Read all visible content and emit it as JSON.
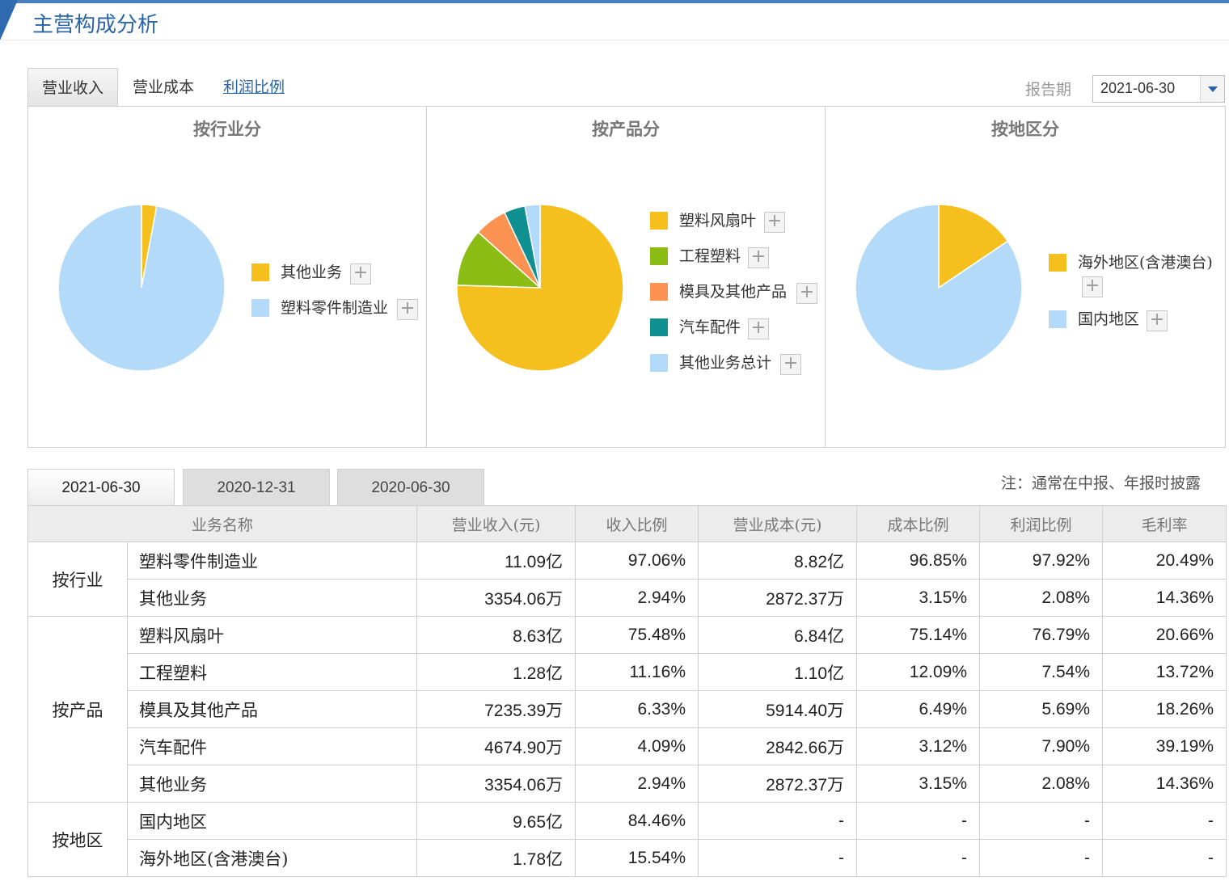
{
  "header": {
    "title": "主营构成分析"
  },
  "top_tabs": [
    {
      "label": "营业收入",
      "active": true
    },
    {
      "label": "营业成本",
      "active": false
    },
    {
      "label": "利润比例",
      "active": false
    }
  ],
  "report_period": {
    "label": "报告期",
    "value": "2021-06-30"
  },
  "colors": {
    "yellow": "#F5BF1E",
    "light_blue": "#B3DAF9",
    "green": "#8CBD15",
    "orange": "#FC9252",
    "teal": "#109090",
    "accent": "#2A64A8"
  },
  "charts": {
    "industry": {
      "title": "按行业分",
      "legend": [
        {
          "label": "其他业务",
          "color": "#F5BF1E"
        },
        {
          "label": "塑料零件制造业",
          "color": "#B3DAF9"
        }
      ]
    },
    "product": {
      "title": "按产品分",
      "legend": [
        {
          "label": "塑料风扇叶",
          "color": "#F5BF1E"
        },
        {
          "label": "工程塑料",
          "color": "#8CBD15"
        },
        {
          "label": "模具及其他产品",
          "color": "#FC9252"
        },
        {
          "label": "汽车配件",
          "color": "#109090"
        },
        {
          "label": "其他业务总计",
          "color": "#B3DAF9"
        }
      ]
    },
    "region": {
      "title": "按地区分",
      "legend": [
        {
          "label": "海外地区(含港澳台)",
          "color": "#F5BF1E"
        },
        {
          "label": "国内地区",
          "color": "#B3DAF9"
        }
      ]
    }
  },
  "chart_data": [
    {
      "type": "pie",
      "title": "按行业分",
      "categories": [
        "其他业务",
        "塑料零件制造业"
      ],
      "values": [
        2.94,
        97.06
      ],
      "colors": [
        "#F5BF1E",
        "#B3DAF9"
      ],
      "legend": "right"
    },
    {
      "type": "pie",
      "title": "按产品分",
      "categories": [
        "塑料风扇叶",
        "工程塑料",
        "模具及其他产品",
        "汽车配件",
        "其他业务总计"
      ],
      "values": [
        75.48,
        11.16,
        6.33,
        4.09,
        2.94
      ],
      "colors": [
        "#F5BF1E",
        "#8CBD15",
        "#FC9252",
        "#109090",
        "#B3DAF9"
      ],
      "legend": "right"
    },
    {
      "type": "pie",
      "title": "按地区分",
      "categories": [
        "海外地区(含港澳台)",
        "国内地区"
      ],
      "values": [
        15.54,
        84.46
      ],
      "colors": [
        "#F5BF1E",
        "#B3DAF9"
      ],
      "legend": "right"
    }
  ],
  "period_tabs": [
    {
      "label": "2021-06-30",
      "active": true
    },
    {
      "label": "2020-12-31",
      "active": false
    },
    {
      "label": "2020-06-30",
      "active": false
    }
  ],
  "note": "注：通常在中报、年报时披露",
  "table": {
    "headers": [
      "业务名称",
      "营业收入(元)",
      "收入比例",
      "营业成本(元)",
      "成本比例",
      "利润比例",
      "毛利率"
    ],
    "groups": [
      {
        "label": "按行业",
        "rows": [
          [
            "塑料零件制造业",
            "11.09亿",
            "97.06%",
            "8.82亿",
            "96.85%",
            "97.92%",
            "20.49%"
          ],
          [
            "其他业务",
            "3354.06万",
            "2.94%",
            "2872.37万",
            "3.15%",
            "2.08%",
            "14.36%"
          ]
        ]
      },
      {
        "label": "按产品",
        "rows": [
          [
            "塑料风扇叶",
            "8.63亿",
            "75.48%",
            "6.84亿",
            "75.14%",
            "76.79%",
            "20.66%"
          ],
          [
            "工程塑料",
            "1.28亿",
            "11.16%",
            "1.10亿",
            "12.09%",
            "7.54%",
            "13.72%"
          ],
          [
            "模具及其他产品",
            "7235.39万",
            "6.33%",
            "5914.40万",
            "6.49%",
            "5.69%",
            "18.26%"
          ],
          [
            "汽车配件",
            "4674.90万",
            "4.09%",
            "2842.66万",
            "3.12%",
            "7.90%",
            "39.19%"
          ],
          [
            "其他业务",
            "3354.06万",
            "2.94%",
            "2872.37万",
            "3.15%",
            "2.08%",
            "14.36%"
          ]
        ]
      },
      {
        "label": "按地区",
        "rows": [
          [
            "国内地区",
            "9.65亿",
            "84.46%",
            "-",
            "-",
            "-",
            "-"
          ],
          [
            "海外地区(含港澳台)",
            "1.78亿",
            "15.54%",
            "-",
            "-",
            "-",
            "-"
          ]
        ]
      }
    ]
  }
}
